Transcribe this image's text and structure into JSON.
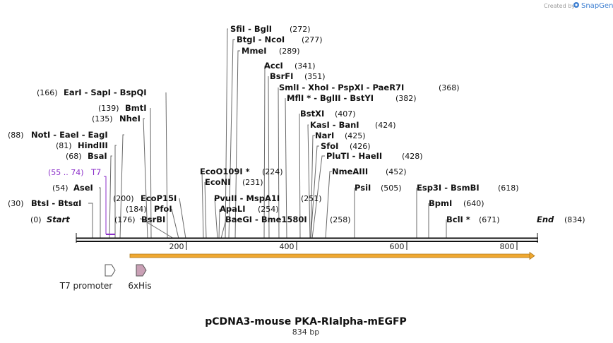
{
  "branding": {
    "created_by": "Created by",
    "product": "SnapGene"
  },
  "map": {
    "title": "pCDNA3-mouse PKA-RIalpha-mEGFP",
    "length_label": "834 bp",
    "total_bp": 834,
    "ticks": [
      {
        "pos": 200,
        "label": "200"
      },
      {
        "pos": 400,
        "label": "400"
      },
      {
        "pos": 600,
        "label": "600"
      },
      {
        "pos": 800,
        "label": "800"
      }
    ],
    "start_label": "Start",
    "start_pos": "(0)",
    "end_label": "End",
    "end_pos": "(834)"
  },
  "sites_left": [
    {
      "id": "btsi",
      "pos": 30,
      "num": "(30)",
      "name": "BtsI  -  BtsαI"
    },
    {
      "id": "asei",
      "pos": 54,
      "num": "(54)",
      "name": "AseI"
    },
    {
      "id": "bsai",
      "pos": 68,
      "num": "(68)",
      "name": "BsaI"
    },
    {
      "id": "hindiii",
      "pos": 81,
      "num": "(81)",
      "name": "HindIII"
    },
    {
      "id": "noti",
      "pos": 88,
      "num": "(88)",
      "name": "NotI  -  EaeI  -  EagI"
    },
    {
      "id": "nhei",
      "pos": 135,
      "num": "(135)",
      "name": "NheI"
    },
    {
      "id": "bmti",
      "pos": 139,
      "num": "(139)",
      "name": "BmtI"
    },
    {
      "id": "eari",
      "pos": 166,
      "num": "(166)",
      "name": "EarI  -  SapI  -  BspQI"
    }
  ],
  "primer": {
    "num": "(55 .. 74)",
    "name": "T7",
    "start": 55,
    "end": 74
  },
  "sites_right": [
    {
      "id": "bsrbi",
      "pos": 176,
      "num": "(176)",
      "name": "BsrBI"
    },
    {
      "id": "pfoi",
      "pos": 184,
      "num": "(184)",
      "name": "PfoI"
    },
    {
      "id": "ecop15i",
      "pos": 200,
      "num": "(200)",
      "name": "EcoP15I"
    },
    {
      "id": "sfii",
      "pos": 272,
      "num": "(272)",
      "name": "SfiI  -  BglI"
    },
    {
      "id": "btgi",
      "pos": 277,
      "num": "(277)",
      "name": "BtgI  -  NcoI"
    },
    {
      "id": "mmei",
      "pos": 289,
      "num": "(289)",
      "name": "MmeI"
    },
    {
      "id": "acci",
      "pos": 341,
      "num": "(341)",
      "name": "AccI"
    },
    {
      "id": "bsrfi",
      "pos": 351,
      "num": "(351)",
      "name": "BsrFI"
    },
    {
      "id": "smli",
      "pos": 368,
      "num": "(368)",
      "name": "SmlI  -  XhoI  -  PspXI  -  PaeR7I"
    },
    {
      "id": "mfli",
      "pos": 382,
      "num": "(382)",
      "name": "MflI *  -  BglII  -  BstYI"
    },
    {
      "id": "bstxi",
      "pos": 407,
      "num": "(407)",
      "name": "BstXI"
    },
    {
      "id": "kasi",
      "pos": 424,
      "num": "(424)",
      "name": "KasI  -  BanI"
    },
    {
      "id": "nari",
      "pos": 425,
      "num": "(425)",
      "name": "NarI"
    },
    {
      "id": "sfoi",
      "pos": 426,
      "num": "(426)",
      "name": "SfoI"
    },
    {
      "id": "pluti",
      "pos": 428,
      "num": "(428)",
      "name": "PluTI  -  HaeII"
    },
    {
      "id": "nmeaiii",
      "pos": 452,
      "num": "(452)",
      "name": "NmeAIII"
    },
    {
      "id": "psii",
      "pos": 505,
      "num": "(505)",
      "name": "PsiI"
    },
    {
      "id": "esp3i",
      "pos": 618,
      "num": "(618)",
      "name": "Esp3I  -  BsmBI"
    },
    {
      "id": "bpmi",
      "pos": 640,
      "num": "(640)",
      "name": "BpmI"
    },
    {
      "id": "bcli",
      "pos": 671,
      "num": "(671)",
      "name": "BclI *"
    }
  ],
  "sites_middle": [
    {
      "id": "ecoo109i",
      "pos": 224,
      "num": "(224)",
      "name": "EcoO109I *"
    },
    {
      "id": "econi",
      "pos": 231,
      "num": "(231)",
      "name": "EcoNI"
    },
    {
      "id": "pvuii",
      "pos": 251,
      "num": "(251)",
      "name": "PvuII  -  MspA1I"
    },
    {
      "id": "apali",
      "pos": 254,
      "num": "(254)",
      "name": "ApaLI"
    },
    {
      "id": "baegi",
      "pos": 258,
      "num": "(258)",
      "name": "BaeGI  -  Bme1580I"
    }
  ],
  "features": [
    {
      "id": "t7-promoter",
      "name": "T7 promoter",
      "color": "#ffffff"
    },
    {
      "id": "6xhis",
      "name": "6xHis",
      "color": "#c9a0b5"
    }
  ],
  "orf": {
    "start": 100,
    "end": 833,
    "color": "#f0a830"
  }
}
